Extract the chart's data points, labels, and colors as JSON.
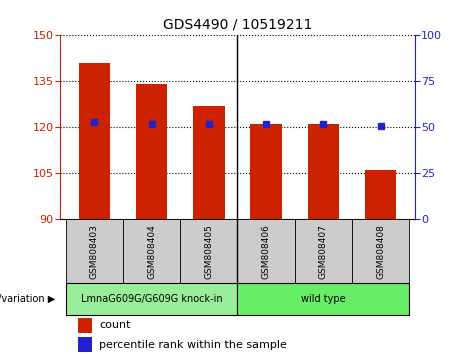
{
  "title": "GDS4490 / 10519211",
  "samples": [
    "GSM808403",
    "GSM808404",
    "GSM808405",
    "GSM808406",
    "GSM808407",
    "GSM808408"
  ],
  "counts": [
    141,
    134,
    127,
    121,
    121,
    106
  ],
  "percentile_ranks": [
    53,
    52,
    52,
    52,
    52,
    51
  ],
  "ylim_left": [
    90,
    150
  ],
  "ylim_right": [
    0,
    100
  ],
  "yticks_left": [
    90,
    105,
    120,
    135,
    150
  ],
  "yticks_right": [
    0,
    25,
    50,
    75,
    100
  ],
  "bar_color": "#cc2200",
  "dot_color": "#2222cc",
  "grid_color": "#000000",
  "groups": [
    {
      "label": "LmnaG609G/G609G knock-in",
      "samples": [
        0,
        1,
        2
      ],
      "color": "#99ee99"
    },
    {
      "label": "wild type",
      "samples": [
        3,
        4,
        5
      ],
      "color": "#66ee66"
    }
  ],
  "group_label": "genotype/variation",
  "legend_count": "count",
  "legend_percentile": "percentile rank within the sample",
  "tick_label_color_left": "#cc2200",
  "tick_label_color_right": "#2222cc",
  "bar_bottom": 90,
  "background_color": "#ffffff",
  "sample_bg_color": "#cccccc",
  "bar_width": 0.55
}
